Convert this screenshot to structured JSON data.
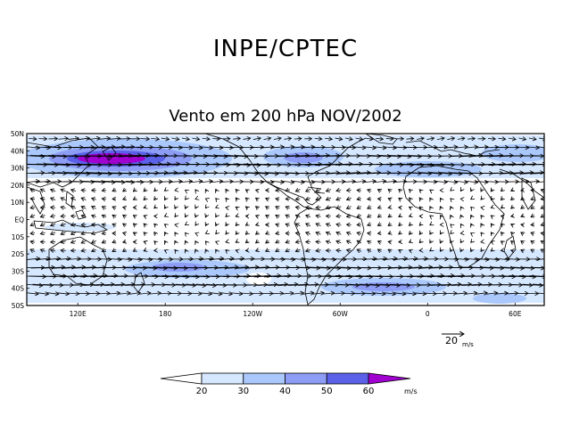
{
  "header": "INPE/CPTEC",
  "map_title": "Vento em 200 hPa NOV/2002",
  "lat_labels": [
    "50N",
    "40N",
    "30N",
    "20N",
    "10N",
    "EQ",
    "10S",
    "20S",
    "30S",
    "40S",
    "50S"
  ],
  "lon_labels": [
    {
      "label": "120E",
      "lon": 120
    },
    {
      "label": "180",
      "lon": 180
    },
    {
      "label": "120W",
      "lon": 240
    },
    {
      "label": "60W",
      "lon": 300
    },
    {
      "label": "0",
      "lon": 360
    },
    {
      "label": "60E",
      "lon": 420
    }
  ],
  "lon_range": [
    85,
    440
  ],
  "lat_range": [
    -50,
    50
  ],
  "reference_vector": {
    "value": "20",
    "unit": "m/s"
  },
  "colorbar": {
    "ticks": [
      "20",
      "30",
      "40",
      "50",
      "60"
    ],
    "unit": "m/s",
    "colors": [
      "#ffffff",
      "#d6e8ff",
      "#aac8fb",
      "#8d9cf5",
      "#5a61e8",
      "#a000d0"
    ]
  }
}
